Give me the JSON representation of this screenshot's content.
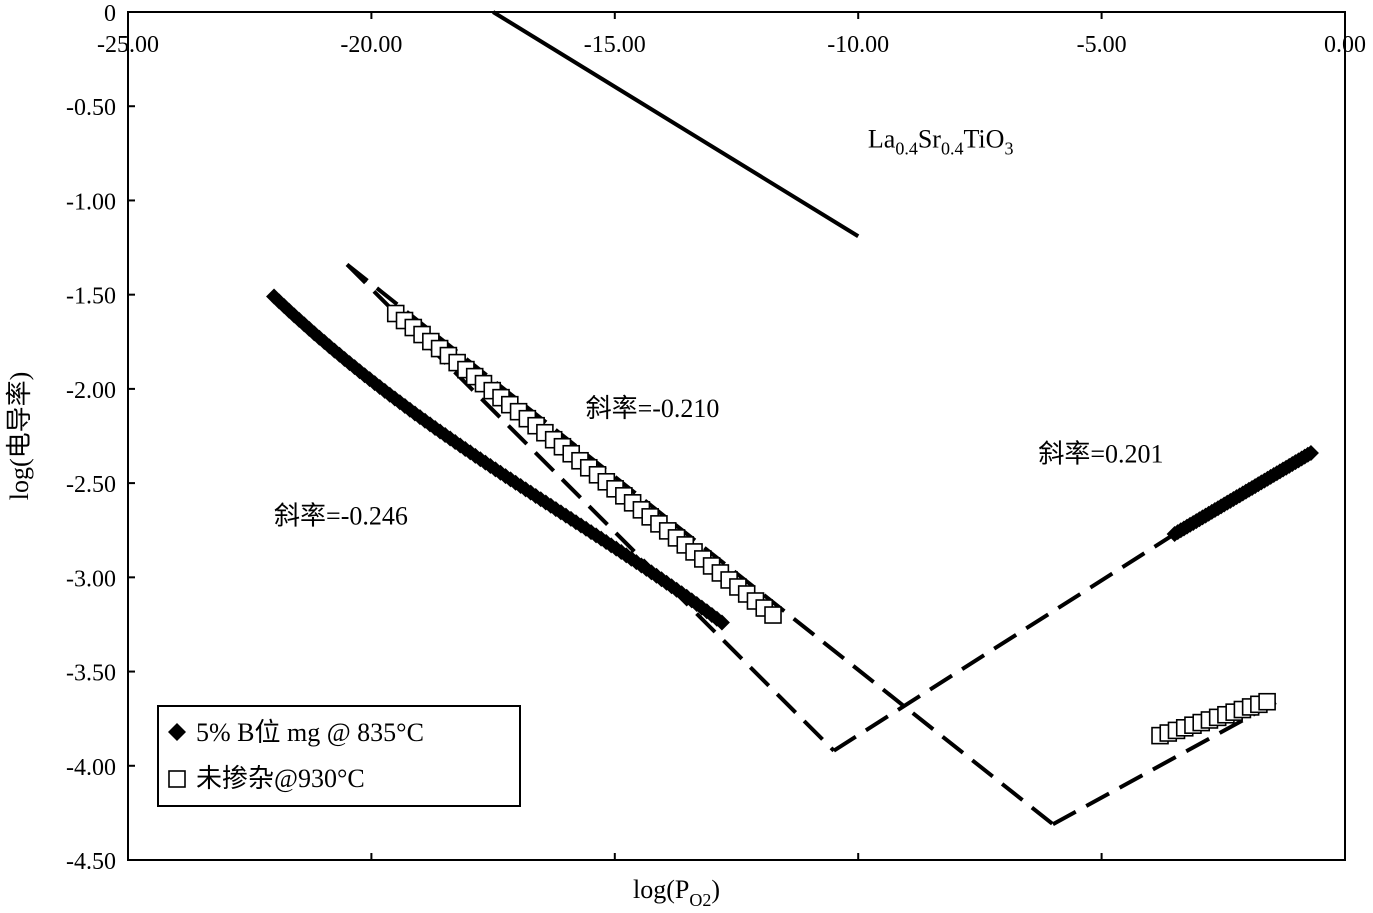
{
  "chart_data": {
    "type": "scatter",
    "xlabel": "log(P",
    "xlabel_sub": "O2",
    "xlabel_close": ")",
    "ylabel": "log(电导率)",
    "xlim": [
      -25,
      0
    ],
    "ylim": [
      -4.5,
      0
    ],
    "x_ticks": [
      {
        "value": -25,
        "label": "-25.00"
      },
      {
        "value": -20,
        "label": "-20.00"
      },
      {
        "value": -15,
        "label": "-15.00"
      },
      {
        "value": -10,
        "label": "-10.00"
      },
      {
        "value": -5,
        "label": "-5.00"
      },
      {
        "value": 0,
        "label": "0.00"
      }
    ],
    "y_ticks": [
      {
        "value": 0,
        "label": "0"
      },
      {
        "value": -0.5,
        "label": "-0.50"
      },
      {
        "value": -1.0,
        "label": "-1.00"
      },
      {
        "value": -1.5,
        "label": "-1.50"
      },
      {
        "value": -2.0,
        "label": "-2.00"
      },
      {
        "value": -2.5,
        "label": "-2.50"
      },
      {
        "value": -3.0,
        "label": "-3.00"
      },
      {
        "value": -3.5,
        "label": "-3.50"
      },
      {
        "value": -4.0,
        "label": "-4.00"
      },
      {
        "value": -4.5,
        "label": "-4.50"
      }
    ],
    "legend_position": "bottom-left",
    "series": [
      {
        "name": "5% B位 mg @ 835°C",
        "marker": "diamond",
        "color": "#000000",
        "points_low": {
          "x_start": -22.0,
          "x_end": -12.8,
          "n": 90
        },
        "points_high": {
          "x_start": -3.5,
          "x_end": -0.7,
          "y_start": -2.77,
          "y_end": -2.34,
          "n": 45
        }
      },
      {
        "name": "未掺杂@930°C",
        "marker": "square",
        "color": "#000000",
        "points_low": {
          "x_start": -19.5,
          "x_end": -11.75,
          "y_start": -1.6,
          "y_end": -3.2,
          "n": 44
        },
        "points_high": {
          "x_start": -3.8,
          "x_end": -1.6,
          "y_start": -3.84,
          "y_end": -3.66,
          "n": 14
        }
      }
    ],
    "solid_line": {
      "label_main": "La",
      "sub1": "0.4",
      "mid": "Sr",
      "sub2": "0.4",
      "tail": "TiO",
      "sub3": "3",
      "points": [
        [
          -17.5,
          0.0
        ],
        [
          -10.0,
          -1.19
        ]
      ]
    },
    "dashed_lines": [
      [
        [
          -20.5,
          -1.34
        ],
        [
          -10.5,
          -3.92
        ]
      ],
      [
        [
          -10.5,
          -3.92
        ],
        [
          -3.5,
          -2.77
        ]
      ],
      [
        [
          -20.5,
          -1.34
        ],
        [
          -6.0,
          -4.31
        ]
      ],
      [
        [
          -6.0,
          -4.31
        ],
        [
          -1.4,
          -3.66
        ]
      ]
    ],
    "annotations": [
      {
        "text": "斜率=-0.210",
        "x": -15.6,
        "y": -2.15
      },
      {
        "text": "斜率=0.201",
        "x": -6.3,
        "y": -2.39
      },
      {
        "text": "斜率=-0.246",
        "x": -22.0,
        "y": -2.72
      }
    ]
  }
}
